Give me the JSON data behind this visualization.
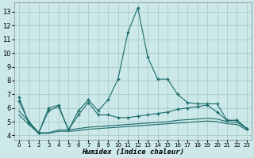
{
  "xlabel": "Humidex (Indice chaleur)",
  "background_color": "#cce8e8",
  "line_color": "#1a6b6b",
  "grid_color": "#aacccc",
  "xlim": [
    -0.5,
    23.5
  ],
  "ylim": [
    3.7,
    13.7
  ],
  "yticks": [
    4,
    5,
    6,
    7,
    8,
    9,
    10,
    11,
    12,
    13
  ],
  "xtick_labels": [
    "0",
    "1",
    "2",
    "3",
    "4",
    "5",
    "6",
    "7",
    "8",
    "9",
    "10",
    "11",
    "12",
    "13",
    "14",
    "15",
    "16",
    "17",
    "18",
    "19",
    "20",
    "21",
    "22",
    "23"
  ],
  "series": [
    {
      "x": [
        0,
        1,
        2,
        3,
        4,
        5,
        6,
        7,
        8,
        9,
        10,
        11,
        12,
        13,
        14,
        15,
        16,
        17,
        18,
        19,
        20,
        21,
        22,
        23
      ],
      "y": [
        6.8,
        4.9,
        4.2,
        6.0,
        6.2,
        4.4,
        5.8,
        6.6,
        5.8,
        6.6,
        8.1,
        11.5,
        13.3,
        9.7,
        8.1,
        8.1,
        7.0,
        6.4,
        6.3,
        6.3,
        6.3,
        5.1,
        5.1,
        4.5
      ],
      "has_markers": true
    },
    {
      "x": [
        0,
        1,
        2,
        3,
        4,
        5,
        6,
        7,
        8,
        9,
        10,
        11,
        12,
        13,
        14,
        15,
        16,
        17,
        18,
        19,
        20,
        21,
        22,
        23
      ],
      "y": [
        6.5,
        5.0,
        4.2,
        5.8,
        6.1,
        4.4,
        5.5,
        6.4,
        5.5,
        5.5,
        5.3,
        5.3,
        5.4,
        5.5,
        5.6,
        5.7,
        5.9,
        6.0,
        6.1,
        6.2,
        5.7,
        5.1,
        5.1,
        4.5
      ],
      "has_markers": true
    },
    {
      "x": [
        0,
        1,
        2,
        3,
        4,
        5,
        6,
        7,
        8,
        9,
        10,
        11,
        12,
        13,
        14,
        15,
        16,
        17,
        18,
        19,
        20,
        21,
        22,
        23
      ],
      "y": [
        5.8,
        5.0,
        4.2,
        4.2,
        4.4,
        4.4,
        4.5,
        4.6,
        4.65,
        4.7,
        4.75,
        4.8,
        4.85,
        4.9,
        4.95,
        5.0,
        5.1,
        5.15,
        5.2,
        5.25,
        5.2,
        5.0,
        4.95,
        4.5
      ],
      "has_markers": false
    },
    {
      "x": [
        0,
        1,
        2,
        3,
        4,
        5,
        6,
        7,
        8,
        9,
        10,
        11,
        12,
        13,
        14,
        15,
        16,
        17,
        18,
        19,
        20,
        21,
        22,
        23
      ],
      "y": [
        5.5,
        4.8,
        4.15,
        4.15,
        4.3,
        4.3,
        4.35,
        4.45,
        4.5,
        4.55,
        4.6,
        4.65,
        4.7,
        4.75,
        4.8,
        4.85,
        4.9,
        4.95,
        5.0,
        5.05,
        5.0,
        4.85,
        4.8,
        4.4
      ],
      "has_markers": false
    }
  ]
}
